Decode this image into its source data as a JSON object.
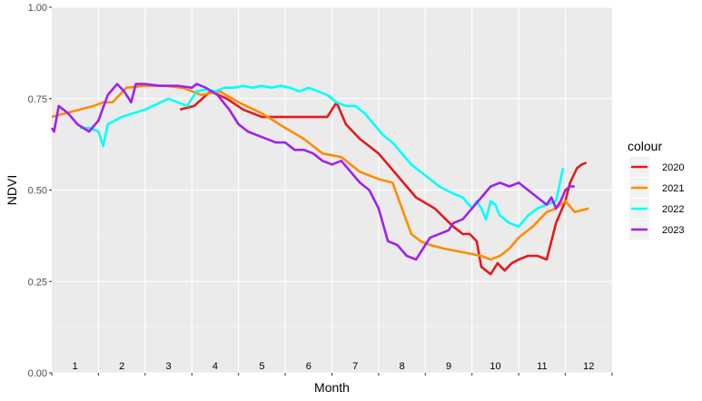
{
  "chart_data": {
    "type": "line",
    "xlabel": "Month",
    "ylabel": "NDVI",
    "xlim": [
      0,
      12
    ],
    "ylim": [
      0,
      1
    ],
    "yticks": [
      0.0,
      0.25,
      0.5,
      0.75,
      1.0
    ],
    "ytick_labels": [
      "0.00",
      "0.25",
      "0.50",
      "0.75",
      "1.00"
    ],
    "month_labels": [
      "1",
      "2",
      "3",
      "4",
      "5",
      "6",
      "7",
      "8",
      "9",
      "10",
      "11",
      "12"
    ],
    "grid": true,
    "panel_background": "#EBEBEB",
    "legend": {
      "title": "colour",
      "position": "right"
    },
    "series": [
      {
        "name": "2020",
        "color": "#E41A1C",
        "x": [
          2.75,
          3.05,
          3.4,
          3.75,
          4.1,
          4.5,
          5.0,
          5.5,
          5.9,
          6.1,
          6.3,
          6.6,
          7.0,
          7.4,
          7.8,
          8.2,
          8.6,
          8.8,
          8.95,
          9.1,
          9.2,
          9.3,
          9.4,
          9.55,
          9.7,
          9.85,
          10.0,
          10.2,
          10.4,
          10.6,
          10.8,
          11.0,
          11.1,
          11.25,
          11.35,
          11.45
        ],
        "y": [
          0.72,
          0.73,
          0.77,
          0.75,
          0.72,
          0.7,
          0.7,
          0.7,
          0.7,
          0.74,
          0.68,
          0.64,
          0.6,
          0.54,
          0.48,
          0.45,
          0.4,
          0.38,
          0.38,
          0.36,
          0.29,
          0.28,
          0.27,
          0.3,
          0.28,
          0.3,
          0.31,
          0.32,
          0.32,
          0.31,
          0.41,
          0.47,
          0.52,
          0.56,
          0.57,
          0.575
        ]
      },
      {
        "name": "2021",
        "color": "#FF8C00",
        "x": [
          0.0,
          0.3,
          0.6,
          0.9,
          1.1,
          1.3,
          1.6,
          2.0,
          2.4,
          2.8,
          3.2,
          3.6,
          4.0,
          4.5,
          5.0,
          5.4,
          5.8,
          6.2,
          6.6,
          7.0,
          7.3,
          7.5,
          7.7,
          7.9,
          8.1,
          8.4,
          8.8,
          9.2,
          9.4,
          9.6,
          9.8,
          10.0,
          10.3,
          10.6,
          10.8,
          11.0,
          11.2,
          11.5
        ],
        "y": [
          0.7,
          0.71,
          0.72,
          0.73,
          0.74,
          0.74,
          0.78,
          0.785,
          0.785,
          0.78,
          0.76,
          0.77,
          0.74,
          0.71,
          0.67,
          0.64,
          0.6,
          0.59,
          0.55,
          0.53,
          0.52,
          0.45,
          0.38,
          0.36,
          0.35,
          0.34,
          0.33,
          0.32,
          0.31,
          0.32,
          0.34,
          0.37,
          0.4,
          0.44,
          0.45,
          0.47,
          0.44,
          0.45
        ]
      },
      {
        "name": "2022",
        "color": "#00FFFF",
        "x": [
          0.6,
          0.8,
          1.0,
          1.1,
          1.2,
          1.5,
          2.0,
          2.5,
          2.9,
          3.1,
          3.3,
          3.5,
          3.7,
          3.9,
          4.1,
          4.3,
          4.5,
          4.7,
          4.9,
          5.1,
          5.3,
          5.5,
          5.7,
          5.9,
          6.1,
          6.3,
          6.5,
          6.7,
          6.9,
          7.1,
          7.3,
          7.5,
          7.7,
          8.0,
          8.3,
          8.6,
          8.8,
          9.0,
          9.1,
          9.2,
          9.3,
          9.4,
          9.5,
          9.6,
          9.8,
          10.0,
          10.2,
          10.4,
          10.6,
          10.8,
          10.95
        ],
        "y": [
          0.67,
          0.67,
          0.66,
          0.62,
          0.68,
          0.7,
          0.72,
          0.75,
          0.73,
          0.77,
          0.775,
          0.77,
          0.78,
          0.78,
          0.785,
          0.78,
          0.785,
          0.78,
          0.785,
          0.78,
          0.77,
          0.78,
          0.77,
          0.76,
          0.74,
          0.73,
          0.73,
          0.71,
          0.68,
          0.65,
          0.63,
          0.6,
          0.57,
          0.54,
          0.51,
          0.49,
          0.48,
          0.45,
          0.47,
          0.45,
          0.42,
          0.47,
          0.46,
          0.43,
          0.41,
          0.4,
          0.43,
          0.45,
          0.46,
          0.47,
          0.56
        ]
      },
      {
        "name": "2023",
        "color": "#A020F0",
        "x": [
          0.0,
          0.05,
          0.15,
          0.35,
          0.55,
          0.8,
          1.0,
          1.2,
          1.4,
          1.55,
          1.7,
          1.8,
          2.0,
          2.3,
          2.7,
          3.0,
          3.1,
          3.3,
          3.55,
          3.8,
          4.0,
          4.2,
          4.4,
          4.6,
          4.8,
          5.0,
          5.2,
          5.4,
          5.6,
          5.8,
          6.0,
          6.2,
          6.4,
          6.6,
          6.8,
          7.0,
          7.2,
          7.4,
          7.6,
          7.8,
          7.95,
          8.1,
          8.3,
          8.5,
          8.6,
          8.8,
          9.0,
          9.2,
          9.4,
          9.6,
          9.8,
          10.0,
          10.2,
          10.3,
          10.4,
          10.5,
          10.6,
          10.7,
          10.8,
          10.9,
          11.0,
          11.1,
          11.2
        ],
        "y": [
          0.67,
          0.66,
          0.73,
          0.71,
          0.68,
          0.66,
          0.69,
          0.76,
          0.79,
          0.77,
          0.74,
          0.79,
          0.79,
          0.785,
          0.785,
          0.78,
          0.79,
          0.78,
          0.76,
          0.72,
          0.68,
          0.66,
          0.65,
          0.64,
          0.63,
          0.63,
          0.61,
          0.61,
          0.6,
          0.58,
          0.57,
          0.58,
          0.55,
          0.52,
          0.5,
          0.45,
          0.36,
          0.35,
          0.32,
          0.31,
          0.34,
          0.37,
          0.38,
          0.39,
          0.41,
          0.42,
          0.45,
          0.48,
          0.51,
          0.52,
          0.51,
          0.52,
          0.5,
          0.49,
          0.48,
          0.47,
          0.46,
          0.48,
          0.45,
          0.47,
          0.5,
          0.51,
          0.51
        ]
      }
    ]
  }
}
